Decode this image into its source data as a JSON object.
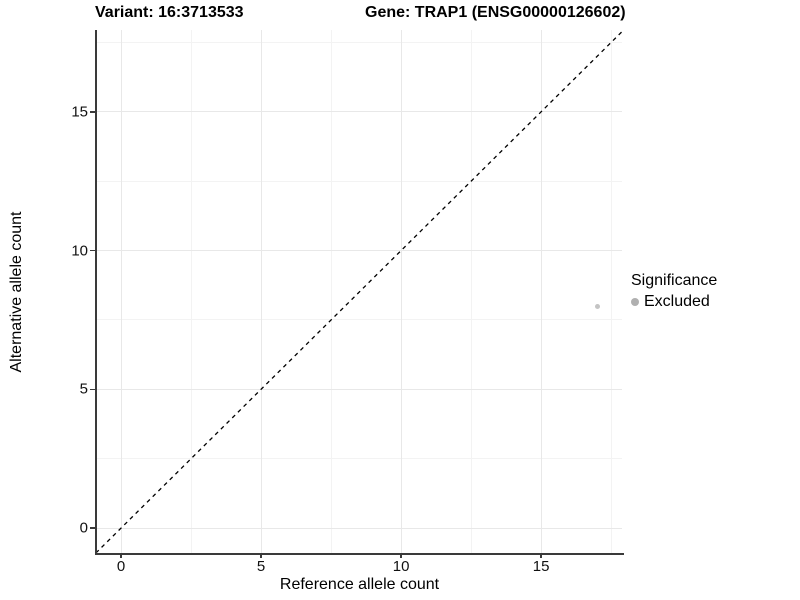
{
  "chart_data": {
    "type": "scatter",
    "title_left": "Variant: 16:3713533",
    "title_right": "Gene: TRAP1 (ENSG00000126602)",
    "xlabel": "Reference allele count",
    "ylabel": "Alternative allele count",
    "x_ticks": [
      0,
      5,
      10,
      15
    ],
    "y_ticks": [
      0,
      5,
      10,
      15
    ],
    "x_minor": [
      2.5,
      7.5,
      12.5,
      17.5
    ],
    "y_minor": [
      2.5,
      7.5,
      12.5,
      17.5
    ],
    "xlim": [
      -0.86,
      17.89
    ],
    "ylim": [
      -0.9,
      17.95
    ],
    "points": [
      {
        "x": 17,
        "y": 8,
        "series": "Excluded"
      }
    ],
    "identity_line": {
      "style": "dashed",
      "x1": -0.9,
      "y1": -0.9,
      "x2": 17.95,
      "y2": 17.95
    },
    "legend": {
      "title": "Significance",
      "position": "right",
      "entries": [
        {
          "label": "Excluded",
          "color": "#b0b0b0"
        }
      ]
    },
    "grid": {
      "major_color": "#e8e8e8",
      "minor_color": "#f3f3f3"
    },
    "colors": {
      "axis": "#3a3a3a",
      "point": "#c4c4c4",
      "dashed_line": "#000000"
    }
  }
}
